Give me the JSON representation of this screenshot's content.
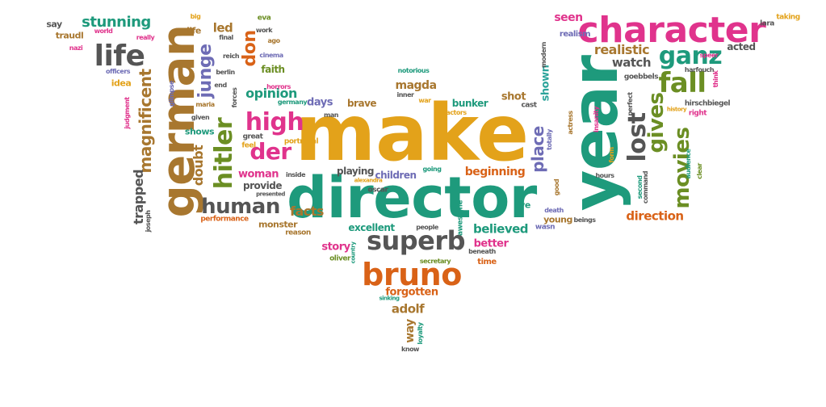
{
  "palette": {
    "gold": "#E3A21A",
    "green": "#1E9A7C",
    "brown": "#A8772F",
    "magenta": "#E0338C",
    "grey": "#555555",
    "purple": "#6E6CB5",
    "orange": "#D96217",
    "olive": "#6B8E23",
    "teal": "#2BA39A",
    "blue": "#4D7CB8"
  },
  "words": [
    "make",
    "director",
    "year",
    "german",
    "character",
    "bruno",
    "superb",
    "hitler",
    "fall",
    "high",
    "der",
    "life",
    "lost",
    "gives",
    "movies",
    "ganz",
    "human",
    "junge",
    "stunning",
    "place",
    "don",
    "magnificent",
    "doubt",
    "realistic",
    "opinion",
    "direction",
    "trapped",
    "facts",
    "forgotten",
    "believed",
    "adolf",
    "watch",
    "excellent",
    "woman",
    "provide",
    "magda",
    "beginning",
    "children",
    "seen",
    "shot",
    "days",
    "brave",
    "bunker",
    "playing",
    "story",
    "better",
    "shown",
    "say",
    "led",
    "life",
    "traudl",
    "faith",
    "horrors",
    "berlin",
    "reich",
    "cinema",
    "idea",
    "acted",
    "taking",
    "lara",
    "realism",
    "goebbels",
    "hirschbiegel",
    "perfect",
    "second",
    "command",
    "audience",
    "clear",
    "hours",
    "young",
    "beings",
    "death",
    "ve",
    "oscar",
    "actors",
    "people",
    "awesome",
    "secretary",
    "time",
    "beneath",
    "country",
    "oliver",
    "reason",
    "monster",
    "performance",
    "joseph",
    "presented",
    "alexandra",
    "inside",
    "portrayal",
    "great",
    "feel",
    "shows",
    "given",
    "maria",
    "forces",
    "end",
    "final",
    "big",
    "world",
    "nazi",
    "officers",
    "really",
    "glimpse",
    "judgment",
    "ago",
    "work",
    "eva",
    "notorious",
    "inner",
    "war",
    "man",
    "germany",
    "going",
    "wasn",
    "good",
    "history",
    "right",
    "think",
    "harfouch",
    "speer",
    "modern",
    "insanity",
    "actress",
    "totally",
    "form",
    "loyalty",
    "know",
    "way",
    "sinking",
    "cast"
  ]
}
